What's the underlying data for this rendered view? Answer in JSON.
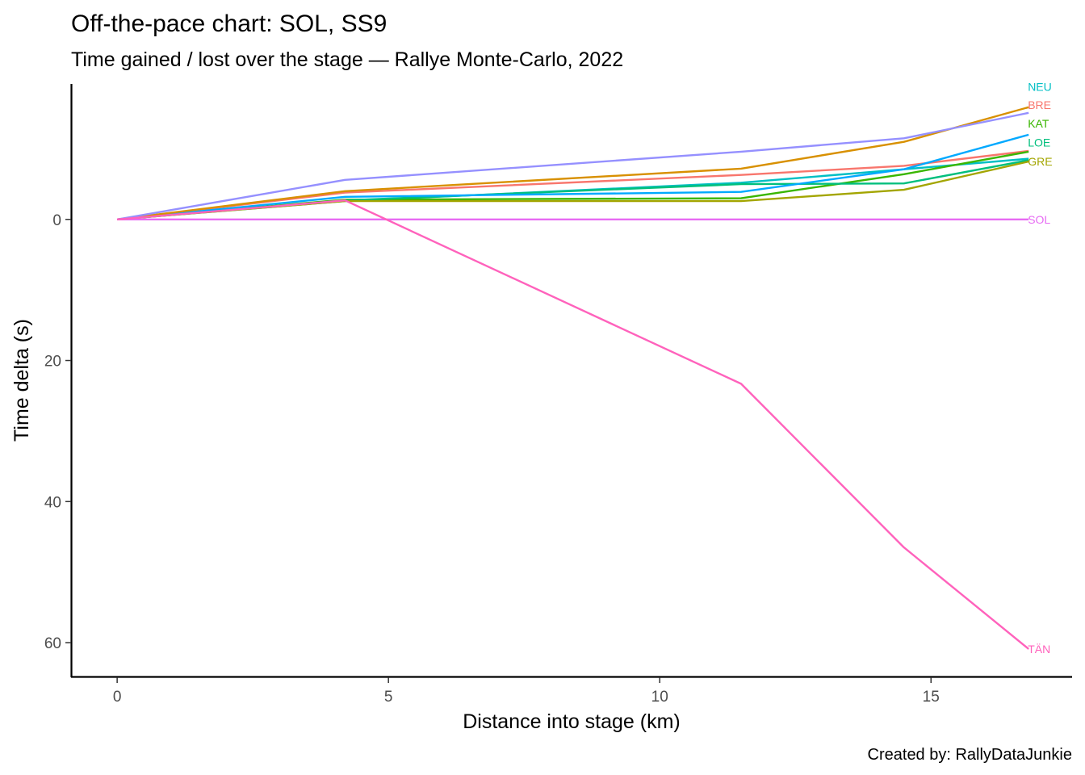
{
  "chart_data": {
    "type": "line",
    "title": "Off-the-pace chart: SOL, SS9",
    "subtitle": "Time gained / lost over the stage — Rallye Monte-Carlo, 2022",
    "xlabel": "Distance into stage (km)",
    "ylabel": "Time delta (s)",
    "caption": "Created by: RallyDataJunkie",
    "x_ticks": [
      0,
      5,
      10,
      15
    ],
    "y_ticks": [
      0,
      20,
      40,
      60
    ],
    "xlim": [
      -0.85,
      17.6
    ],
    "ylim": [
      -19.2,
      64.8
    ],
    "y_reversed": true,
    "grid": false,
    "legend": "none",
    "x": [
      0,
      4.2,
      11.5,
      14.5,
      16.8
    ],
    "series": [
      {
        "name": "NEU",
        "color": "#00BFC4",
        "values": [
          0,
          -2.6,
          -5.2,
          -7.1,
          -8.6
        ]
      },
      {
        "name": "BRE",
        "color": "#F8766D",
        "values": [
          0,
          -3.8,
          -6.3,
          -7.6,
          -9.7
        ]
      },
      {
        "name": "KAT",
        "color": "#39B600",
        "values": [
          0,
          -2.8,
          -3.0,
          -6.4,
          -9.6
        ]
      },
      {
        "name": "LOE",
        "color": "#00BF7D",
        "values": [
          0,
          -2.7,
          -5.0,
          -5.1,
          -8.4
        ]
      },
      {
        "name": "GRE",
        "color": "#A3A500",
        "values": [
          0,
          -2.6,
          -2.6,
          -4.2,
          -8.2
        ]
      },
      {
        "name": "",
        "color": "#00A9FF",
        "values": [
          0,
          -3.2,
          -3.9,
          -7.1,
          -12.0
        ]
      },
      {
        "name": "",
        "color": "#D89000",
        "values": [
          0,
          -4.0,
          -7.2,
          -11.0,
          -15.9
        ]
      },
      {
        "name": "",
        "color": "#9590FF",
        "values": [
          0,
          -5.6,
          -9.6,
          -11.5,
          -15.1
        ]
      },
      {
        "name": "SOL",
        "color": "#E76BF3",
        "values": [
          0,
          0,
          0,
          0,
          0
        ]
      },
      {
        "name": "TÄN",
        "color": "#FF62BC",
        "values": [
          0,
          -2.7,
          23.3,
          46.5,
          60.9
        ]
      }
    ],
    "label_positions": [
      {
        "name": "NEU",
        "color": "#00BFC4",
        "value": -18.8
      },
      {
        "name": "BRE",
        "color": "#F8766D",
        "value": -16.2
      },
      {
        "name": "KAT",
        "color": "#39B600",
        "value": -13.6
      },
      {
        "name": "LOE",
        "color": "#00BF7D",
        "value": -10.9
      },
      {
        "name": "GRE",
        "color": "#A3A500",
        "value": -8.2
      },
      {
        "name": "SOL",
        "color": "#E76BF3",
        "value": 0
      },
      {
        "name": "TÄN",
        "color": "#FF62BC",
        "value": 60.9
      }
    ]
  }
}
